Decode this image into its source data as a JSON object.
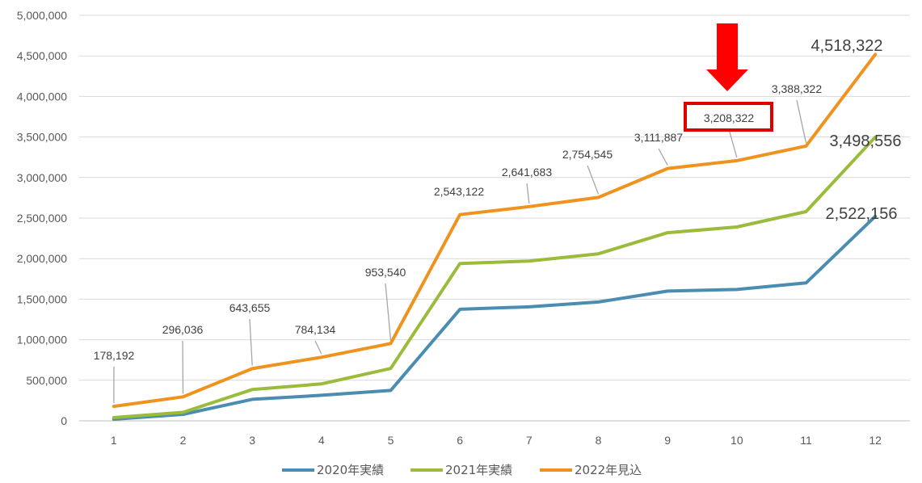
{
  "chart_data": {
    "type": "line",
    "categories": [
      "1",
      "2",
      "3",
      "4",
      "5",
      "6",
      "7",
      "8",
      "9",
      "10",
      "11",
      "12"
    ],
    "ylim": [
      0,
      5000000
    ],
    "yticks": [
      0,
      500000,
      1000000,
      1500000,
      2000000,
      2500000,
      3000000,
      3500000,
      4000000,
      4500000,
      5000000
    ],
    "ytick_labels": [
      "0",
      "500,000",
      "1,000,000",
      "1,500,000",
      "2,000,000",
      "2,500,000",
      "3,000,000",
      "3,500,000",
      "4,000,000",
      "4,500,000",
      "5,000,000"
    ],
    "grid": "horizontal",
    "legend": "bottom",
    "series": [
      {
        "name": "2020年実績",
        "color": "#4a8db0",
        "values": [
          20000,
          80000,
          265000,
          315000,
          375000,
          1375000,
          1405000,
          1465000,
          1600000,
          1620000,
          1700000,
          2522156
        ],
        "end_label": "2,522,156"
      },
      {
        "name": "2021年実績",
        "color": "#9bbb3b",
        "values": [
          40000,
          105000,
          385000,
          455000,
          645000,
          1940000,
          1970000,
          2060000,
          2320000,
          2390000,
          2580000,
          3498556
        ],
        "end_label": "3,498,556"
      },
      {
        "name": "2022年見込",
        "color": "#f0921e",
        "values": [
          178192,
          296036,
          643655,
          784134,
          953540,
          2543122,
          2641683,
          2754545,
          3111887,
          3208322,
          3388322,
          4518322
        ],
        "point_labels": [
          "178,192",
          "296,036",
          "643,655",
          "784,134",
          "953,540",
          "2,543,122",
          "2,641,683",
          "2,754,545",
          "3,111,887",
          "3,208,322",
          "3,388,322"
        ],
        "end_label": "4,518,322"
      }
    ],
    "annotations": {
      "highlight_label": "3,208,322",
      "highlight_index": 9,
      "highlight_color": "#e00000",
      "arrow_color": "#ff0000"
    }
  }
}
